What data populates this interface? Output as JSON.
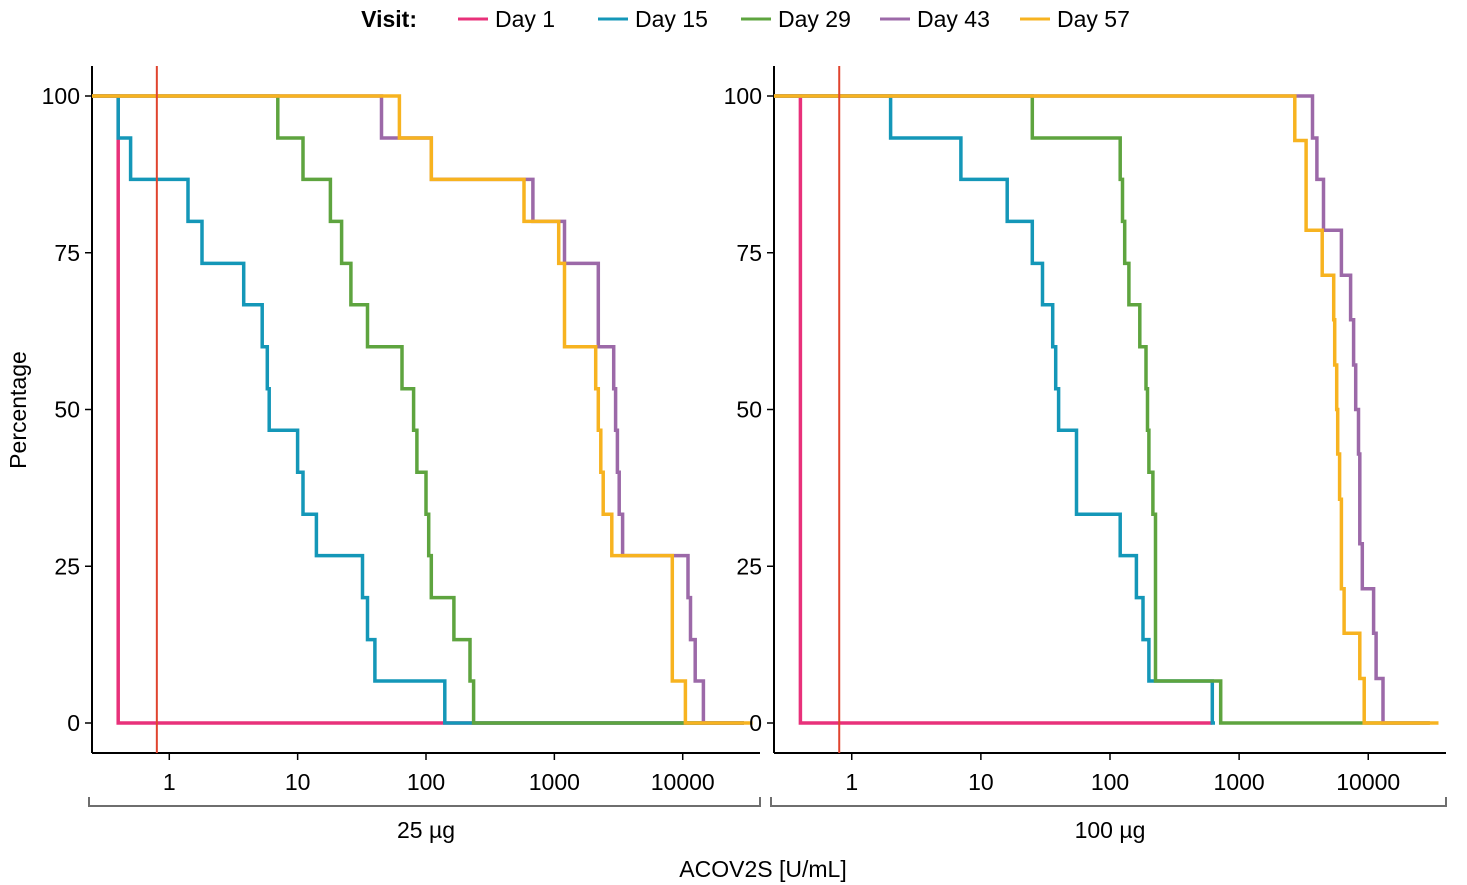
{
  "chart_data": {
    "type": "line",
    "step": true,
    "x_scale": "log",
    "xlabel": "ACOV2S [U/mL]",
    "ylabel": "Percentage",
    "xlim": [
      0.25,
      40000
    ],
    "ylim": [
      -5,
      105
    ],
    "x_ticks": [
      1,
      10,
      100,
      1000,
      10000
    ],
    "x_tick_labels": [
      "1",
      "10",
      "100",
      "1000",
      "10000"
    ],
    "y_ticks": [
      0,
      25,
      50,
      75,
      100
    ],
    "y_tick_labels": [
      "0",
      "25",
      "50",
      "75",
      "100"
    ],
    "reference_line_x": 0.8,
    "reference_color": "#e0442e",
    "legend": {
      "title": "Visit:",
      "position": "top",
      "entries": [
        {
          "label": "Day 1",
          "color": "#e8317a"
        },
        {
          "label": "Day 15",
          "color": "#1497b8"
        },
        {
          "label": "Day 29",
          "color": "#5ea43f"
        },
        {
          "label": "Day 43",
          "color": "#9c69a8"
        },
        {
          "label": "Day 57",
          "color": "#f7b320"
        }
      ]
    },
    "panels": [
      {
        "label": "25 µg",
        "series": [
          {
            "name": "Day 1",
            "points": [
              [
                0.25,
                100
              ],
              [
                0.4,
                100
              ],
              [
                0.4,
                0
              ],
              [
                30000,
                0
              ]
            ]
          },
          {
            "name": "Day 15",
            "points": [
              [
                0.25,
                100
              ],
              [
                0.4,
                100
              ],
              [
                0.4,
                93.3
              ],
              [
                0.5,
                93.3
              ],
              [
                0.5,
                86.7
              ],
              [
                1.4,
                86.7
              ],
              [
                1.4,
                80
              ],
              [
                1.8,
                80
              ],
              [
                1.8,
                73.3
              ],
              [
                3.8,
                73.3
              ],
              [
                3.8,
                66.7
              ],
              [
                5.3,
                66.7
              ],
              [
                5.3,
                60
              ],
              [
                5.8,
                60
              ],
              [
                5.8,
                53.3
              ],
              [
                6,
                53.3
              ],
              [
                6,
                46.7
              ],
              [
                10,
                46.7
              ],
              [
                10,
                40
              ],
              [
                11,
                40
              ],
              [
                11,
                33.3
              ],
              [
                14,
                33.3
              ],
              [
                14,
                26.7
              ],
              [
                32,
                26.7
              ],
              [
                32,
                20
              ],
              [
                35,
                20
              ],
              [
                35,
                13.3
              ],
              [
                40,
                13.3
              ],
              [
                40,
                6.7
              ],
              [
                140,
                6.7
              ],
              [
                140,
                0
              ],
              [
                30000,
                0
              ]
            ]
          },
          {
            "name": "Day 29",
            "points": [
              [
                0.25,
                100
              ],
              [
                7,
                100
              ],
              [
                7,
                93.3
              ],
              [
                11,
                93.3
              ],
              [
                11,
                86.7
              ],
              [
                18,
                86.7
              ],
              [
                18,
                80
              ],
              [
                22,
                80
              ],
              [
                22,
                73.3
              ],
              [
                26,
                73.3
              ],
              [
                26,
                66.7
              ],
              [
                35,
                66.7
              ],
              [
                35,
                60
              ],
              [
                65,
                60
              ],
              [
                65,
                53.3
              ],
              [
                80,
                53.3
              ],
              [
                80,
                46.7
              ],
              [
                85,
                46.7
              ],
              [
                85,
                40
              ],
              [
                100,
                40
              ],
              [
                100,
                33.3
              ],
              [
                105,
                33.3
              ],
              [
                105,
                26.7
              ],
              [
                110,
                26.7
              ],
              [
                110,
                20
              ],
              [
                165,
                20
              ],
              [
                165,
                13.3
              ],
              [
                220,
                13.3
              ],
              [
                220,
                6.7
              ],
              [
                235,
                6.7
              ],
              [
                235,
                0
              ],
              [
                30000,
                0
              ]
            ]
          },
          {
            "name": "Day 43",
            "points": [
              [
                0.25,
                100
              ],
              [
                45,
                100
              ],
              [
                45,
                93.3
              ],
              [
                110,
                93.3
              ],
              [
                110,
                86.7
              ],
              [
                680,
                86.7
              ],
              [
                680,
                80
              ],
              [
                1200,
                80
              ],
              [
                1200,
                73.3
              ],
              [
                2200,
                73.3
              ],
              [
                2200,
                60
              ],
              [
                2900,
                60
              ],
              [
                2900,
                53.3
              ],
              [
                3000,
                53.3
              ],
              [
                3000,
                46.7
              ],
              [
                3100,
                46.7
              ],
              [
                3100,
                40
              ],
              [
                3200,
                40
              ],
              [
                3200,
                33.3
              ],
              [
                3400,
                33.3
              ],
              [
                3400,
                26.7
              ],
              [
                11000,
                26.7
              ],
              [
                11000,
                20
              ],
              [
                11500,
                20
              ],
              [
                11500,
                13.3
              ],
              [
                12500,
                13.3
              ],
              [
                12500,
                6.7
              ],
              [
                14500,
                6.7
              ],
              [
                14500,
                0
              ],
              [
                30000,
                0
              ]
            ]
          },
          {
            "name": "Day 57",
            "points": [
              [
                0.25,
                100
              ],
              [
                62,
                100
              ],
              [
                62,
                93.3
              ],
              [
                110,
                93.3
              ],
              [
                110,
                86.7
              ],
              [
                580,
                86.7
              ],
              [
                580,
                80
              ],
              [
                1080,
                80
              ],
              [
                1080,
                73.3
              ],
              [
                1200,
                73.3
              ],
              [
                1200,
                60
              ],
              [
                2100,
                60
              ],
              [
                2100,
                53.3
              ],
              [
                2200,
                53.3
              ],
              [
                2200,
                46.7
              ],
              [
                2300,
                46.7
              ],
              [
                2300,
                40
              ],
              [
                2400,
                40
              ],
              [
                2400,
                33.3
              ],
              [
                2800,
                33.3
              ],
              [
                2800,
                26.7
              ],
              [
                8300,
                26.7
              ],
              [
                8300,
                6.7
              ],
              [
                10500,
                6.7
              ],
              [
                10500,
                0
              ],
              [
                35000,
                0
              ]
            ]
          }
        ]
      },
      {
        "label": "100 µg",
        "series": [
          {
            "name": "Day 1",
            "points": [
              [
                0.25,
                100
              ],
              [
                0.4,
                100
              ],
              [
                0.4,
                0
              ],
              [
                620,
                0
              ]
            ]
          },
          {
            "name": "Day 15",
            "points": [
              [
                0.25,
                100
              ],
              [
                2,
                100
              ],
              [
                2,
                93.3
              ],
              [
                7,
                93.3
              ],
              [
                7,
                86.7
              ],
              [
                16,
                86.7
              ],
              [
                16,
                80
              ],
              [
                25,
                80
              ],
              [
                25,
                73.3
              ],
              [
                30,
                73.3
              ],
              [
                30,
                66.7
              ],
              [
                36,
                66.7
              ],
              [
                36,
                60
              ],
              [
                38,
                60
              ],
              [
                38,
                53.3
              ],
              [
                40,
                53.3
              ],
              [
                40,
                46.7
              ],
              [
                55,
                46.7
              ],
              [
                55,
                33.3
              ],
              [
                120,
                33.3
              ],
              [
                120,
                26.7
              ],
              [
                160,
                26.7
              ],
              [
                160,
                20
              ],
              [
                180,
                20
              ],
              [
                180,
                13.3
              ],
              [
                200,
                13.3
              ],
              [
                200,
                6.7
              ],
              [
                620,
                6.7
              ],
              [
                620,
                0
              ],
              [
                650,
                0
              ]
            ]
          },
          {
            "name": "Day 29",
            "points": [
              [
                0.25,
                100
              ],
              [
                25,
                100
              ],
              [
                25,
                93.3
              ],
              [
                120,
                93.3
              ],
              [
                120,
                86.7
              ],
              [
                125,
                86.7
              ],
              [
                125,
                80
              ],
              [
                130,
                80
              ],
              [
                130,
                73.3
              ],
              [
                140,
                73.3
              ],
              [
                140,
                66.7
              ],
              [
                170,
                66.7
              ],
              [
                170,
                60
              ],
              [
                190,
                60
              ],
              [
                190,
                53.3
              ],
              [
                195,
                53.3
              ],
              [
                195,
                46.7
              ],
              [
                200,
                46.7
              ],
              [
                200,
                40
              ],
              [
                215,
                40
              ],
              [
                215,
                33.3
              ],
              [
                225,
                33.3
              ],
              [
                225,
                6.7
              ],
              [
                720,
                6.7
              ],
              [
                720,
                0
              ],
              [
                30000,
                0
              ]
            ]
          },
          {
            "name": "Day 43",
            "points": [
              [
                0.25,
                100
              ],
              [
                3700,
                100
              ],
              [
                3700,
                93.3
              ],
              [
                4000,
                93.3
              ],
              [
                4000,
                86.7
              ],
              [
                4500,
                86.7
              ],
              [
                4500,
                78.6
              ],
              [
                6200,
                78.6
              ],
              [
                6200,
                71.4
              ],
              [
                7300,
                71.4
              ],
              [
                7300,
                64.3
              ],
              [
                7700,
                64.3
              ],
              [
                7700,
                57.1
              ],
              [
                8000,
                57.1
              ],
              [
                8000,
                50
              ],
              [
                8400,
                50
              ],
              [
                8400,
                42.9
              ],
              [
                8600,
                42.9
              ],
              [
                8600,
                28.6
              ],
              [
                9000,
                28.6
              ],
              [
                9000,
                21.4
              ],
              [
                11000,
                21.4
              ],
              [
                11000,
                14.3
              ],
              [
                11500,
                14.3
              ],
              [
                11500,
                7.1
              ],
              [
                13000,
                7.1
              ],
              [
                13000,
                0
              ],
              [
                30000,
                0
              ]
            ]
          },
          {
            "name": "Day 57",
            "points": [
              [
                0.25,
                100
              ],
              [
                2700,
                100
              ],
              [
                2700,
                92.9
              ],
              [
                3300,
                92.9
              ],
              [
                3300,
                78.6
              ],
              [
                4400,
                78.6
              ],
              [
                4400,
                71.4
              ],
              [
                5400,
                71.4
              ],
              [
                5400,
                64.3
              ],
              [
                5500,
                64.3
              ],
              [
                5500,
                57.1
              ],
              [
                5700,
                57.1
              ],
              [
                5700,
                50
              ],
              [
                5800,
                50
              ],
              [
                5800,
                42.9
              ],
              [
                6000,
                42.9
              ],
              [
                6000,
                35.7
              ],
              [
                6200,
                35.7
              ],
              [
                6200,
                21.4
              ],
              [
                6500,
                21.4
              ],
              [
                6500,
                14.3
              ],
              [
                8600,
                14.3
              ],
              [
                8600,
                7.1
              ],
              [
                9300,
                7.1
              ],
              [
                9300,
                0
              ],
              [
                35000,
                0
              ]
            ]
          }
        ]
      }
    ]
  }
}
